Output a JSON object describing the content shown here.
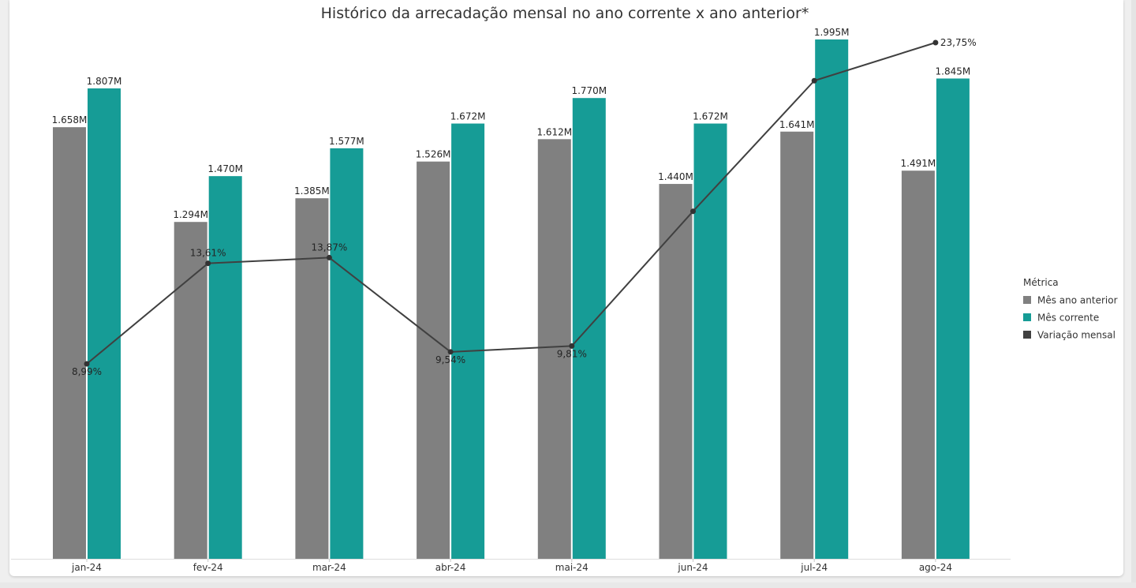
{
  "chart_data": {
    "type": "bar",
    "title": "Histórico da arrecadação mensal no ano corrente x ano anterior*",
    "xlabel": "",
    "ylabel": "",
    "categories": [
      "jan-24",
      "fev-24",
      "mar-24",
      "abr-24",
      "mai-24",
      "jun-24",
      "jul-24",
      "ago-24"
    ],
    "ylim": [
      0,
      2000
    ],
    "grid": false,
    "legend": {
      "title": "Métrica",
      "position": "right"
    },
    "series": [
      {
        "name": "Mês ano anterior",
        "type": "bar",
        "color": "#808080",
        "values": [
          1658,
          1294,
          1385,
          1526,
          1612,
          1440,
          1641,
          1491
        ],
        "labels": [
          "1.658M",
          "1.294M",
          "1.385M",
          "1.526M",
          "1.612M",
          "1.440M",
          "1.641M",
          "1.491M"
        ]
      },
      {
        "name": "Mês corrente",
        "type": "bar",
        "color": "#169c96",
        "values": [
          1807,
          1470,
          1577,
          1672,
          1770,
          1672,
          1995,
          1845
        ],
        "labels": [
          "1.807M",
          "1.470M",
          "1.577M",
          "1.672M",
          "1.770M",
          "1.672M",
          "1.995M",
          "1.845M"
        ]
      },
      {
        "name": "Variação mensal",
        "type": "line",
        "color": "#404040",
        "values": [
          8.99,
          13.61,
          13.87,
          9.54,
          9.81,
          16.0,
          22.0,
          23.75
        ],
        "labels": [
          "8,99%",
          "13,61%",
          "13,87%",
          "9,54%",
          "9,81%",
          "",
          "",
          "23,75%"
        ],
        "label_position": [
          "below",
          "above",
          "above",
          "below",
          "below",
          "",
          "",
          "right"
        ]
      }
    ]
  }
}
